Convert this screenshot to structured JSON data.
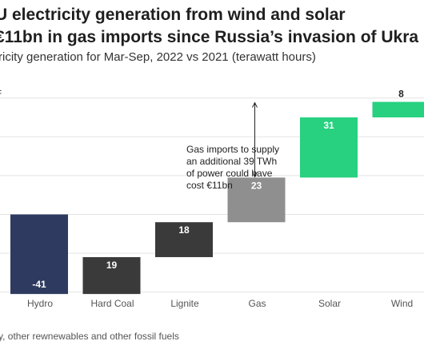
{
  "title": {
    "line1": "U electricity generation from wind and solar",
    "line2": " €11bn in gas imports since Russia’s invasion of Ukra"
  },
  "subtitle": "ricity generation for Mar-Sep, 2022 vs 2021 (terawatt hours)",
  "unit_mark": "=",
  "annotation": "Gas imports to supply an additional 39 TWh of power could have cost €11bn",
  "footnote": "y, other rewnewables and other fossil fuels",
  "colors": {
    "hydro": "#2e3a5f",
    "fossil": "#3a3a3a",
    "gas": "#8f8f8f",
    "renewable": "#27d17f",
    "grid": "#e3e3e3",
    "axis_label": "#555555"
  },
  "chart_data": {
    "type": "bar",
    "subtype": "waterfall",
    "categories": [
      "Hydro",
      "Hard Coal",
      "Lignite",
      "Gas",
      "Solar",
      "Wind"
    ],
    "values": [
      -41,
      19,
      18,
      23,
      31,
      8
    ],
    "value_labels": [
      "-41",
      "19",
      "18",
      "23",
      "31",
      "8"
    ],
    "bar_color_keys": [
      "hydro",
      "fossil",
      "fossil",
      "gas",
      "renewable",
      "renewable"
    ],
    "ylim": [
      -50,
      60
    ],
    "grid": true,
    "gas_import_gap_twh": 39
  }
}
